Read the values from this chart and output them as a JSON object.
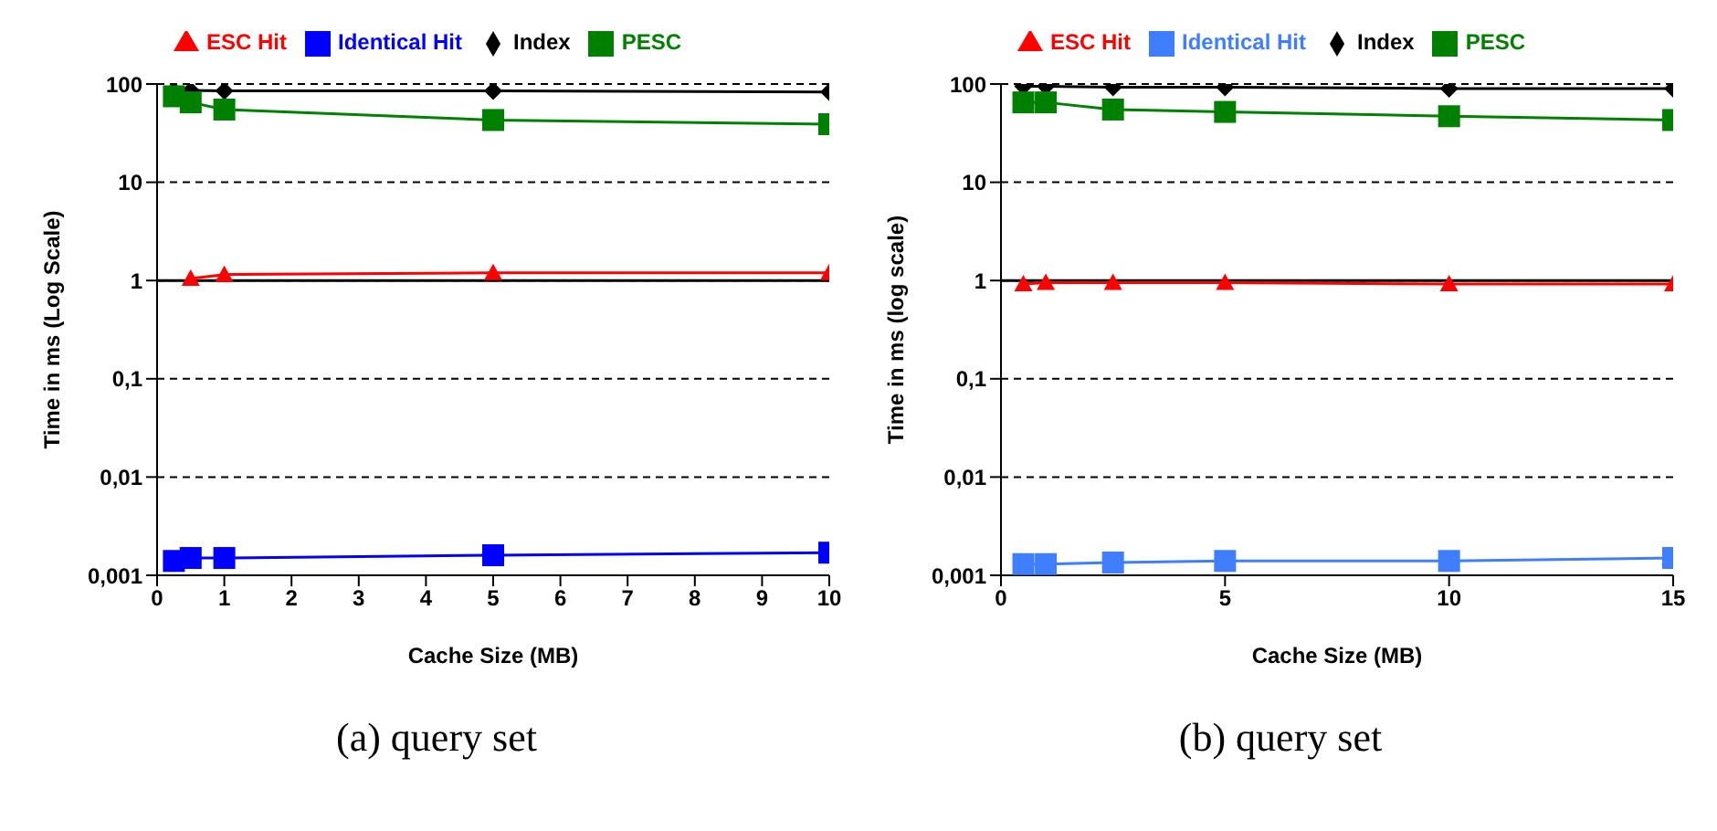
{
  "chart_data": [
    {
      "type": "line",
      "xlabel": "Cache Size (MB)",
      "ylabel": "Time in ms (Log Scale)",
      "log": "y",
      "grid": "y",
      "legend": "top",
      "line_style": "solid",
      "x": [
        0.25,
        0.5,
        1,
        5,
        10
      ],
      "xlim": [
        0,
        10
      ],
      "xticks": [
        0,
        1,
        2,
        3,
        4,
        5,
        6,
        7,
        8,
        9,
        10
      ],
      "ylim": [
        0.001,
        100
      ],
      "yticks": [
        {
          "value": 0.001,
          "label": "0,001"
        },
        {
          "value": 0.01,
          "label": "0,01"
        },
        {
          "value": 0.1,
          "label": "0,1"
        },
        1,
        10,
        100
      ],
      "ref_lines": [
        {
          "axis": "y",
          "value": 1,
          "color": "#000000"
        }
      ],
      "annotations": [
        "(a) query set"
      ],
      "series": [
        {
          "name": "Index",
          "color": "#000000",
          "marker": "diamond",
          "values": [
            85,
            86,
            85,
            85,
            83
          ]
        },
        {
          "name": "Identical Hit",
          "color": "#0000ff",
          "marker": "square",
          "values": [
            0.0014,
            0.0015,
            0.0015,
            0.0016,
            0.0017
          ]
        },
        {
          "name": "ESC Hit",
          "color": "#ff0000",
          "marker": "triangle",
          "values": [
            null,
            1.05,
            1.15,
            1.2,
            1.2
          ]
        },
        {
          "name": "PESC",
          "color": "#008000",
          "marker": "square",
          "values": [
            75,
            65,
            55,
            43,
            39
          ]
        }
      ]
    },
    {
      "type": "line",
      "xlabel": "Cache Size (MB)",
      "ylabel": "Time in ms (log scale)",
      "log": "y",
      "grid": "y",
      "legend": "top",
      "line_style": "solid",
      "x": [
        0.5,
        1,
        2.5,
        5,
        10,
        15
      ],
      "xlim": [
        0,
        15
      ],
      "xticks": [
        0,
        5,
        10,
        15
      ],
      "ylim": [
        0.001,
        100
      ],
      "yticks": [
        {
          "value": 0.001,
          "label": "0,001"
        },
        {
          "value": 0.01,
          "label": "0,01"
        },
        {
          "value": 0.1,
          "label": "0,1"
        },
        1,
        10,
        100
      ],
      "ref_lines": [
        {
          "axis": "y",
          "value": 1,
          "color": "#000000"
        }
      ],
      "annotations": [
        "(b) query set"
      ],
      "series": [
        {
          "name": "Index",
          "color": "#000000",
          "marker": "diamond",
          "values": [
            95,
            95,
            93,
            93,
            90,
            90
          ]
        },
        {
          "name": "Identical Hit",
          "color": "#3f7fff",
          "marker": "square",
          "values": [
            0.0013,
            0.0013,
            0.00135,
            0.0014,
            0.0014,
            0.0015
          ]
        },
        {
          "name": "ESC Hit",
          "color": "#ff0000",
          "marker": "triangle",
          "values": [
            0.92,
            0.95,
            0.95,
            0.95,
            0.92,
            0.92
          ]
        },
        {
          "name": "PESC",
          "color": "#008000",
          "marker": "square",
          "values": [
            65,
            65,
            55,
            52,
            47,
            43
          ]
        }
      ]
    }
  ]
}
